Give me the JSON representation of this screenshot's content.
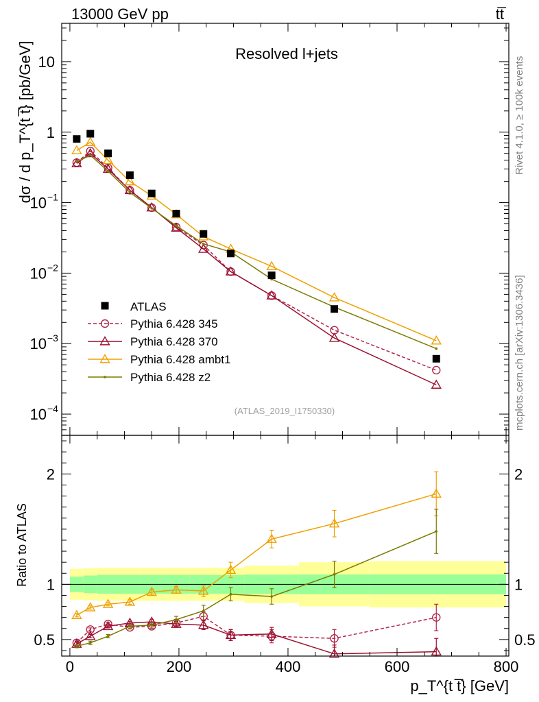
{
  "header": {
    "energy_label": "13000 GeV pp",
    "process_label": "tt̅"
  },
  "side_labels": {
    "rivet": "Rivet 4.1.0, ≥ 100k events",
    "mcplots": "mcplots.cern.ch [arXiv:1306.3436]"
  },
  "chart_data": {
    "type": "scatter",
    "title": "Resolved l+jets",
    "analysis_id": "(ATLAS_2019_I1750330)",
    "xlabel": "p_T^{t t̅} [GeV]",
    "ylabel": "dσ / d p_T^{t t̅} [pb/GeV]",
    "ratio_ylabel": "Ratio to ATLAS",
    "xlim": [
      -15,
      805
    ],
    "ylim": [
      5e-05,
      35
    ],
    "ratio_ylim": [
      0.35,
      2.35
    ],
    "x_ticks": [
      0,
      200,
      400,
      600,
      800
    ],
    "x": [
      12.5,
      37.5,
      70,
      110,
      150,
      195,
      245,
      295,
      370,
      485,
      672
    ],
    "x_bin_edges": [
      0,
      25,
      50,
      90,
      130,
      170,
      220,
      270,
      320,
      420,
      550,
      800
    ],
    "ratio_ticks": [
      0.5,
      1,
      2
    ],
    "main_ticks": [
      {
        "v": 10,
        "m": "10",
        "e": ""
      },
      {
        "v": 1,
        "m": "1",
        "e": ""
      },
      {
        "v": 0.1,
        "m": "10",
        "e": "−1"
      },
      {
        "v": 0.01,
        "m": "10",
        "e": "−2"
      },
      {
        "v": 0.001,
        "m": "10",
        "e": "−3"
      },
      {
        "v": 0.0001,
        "m": "10",
        "e": "−4"
      }
    ],
    "data": {
      "name": "ATLAS",
      "values": [
        0.8,
        0.95,
        0.5,
        0.245,
        0.135,
        0.07,
        0.036,
        0.019,
        0.0093,
        0.0031,
        0.00061
      ]
    },
    "uncertainty_band": {
      "inner_half_width": [
        0.07,
        0.08,
        0.085,
        0.085,
        0.085,
        0.085,
        0.085,
        0.085,
        0.088,
        0.09,
        0.09
      ],
      "outer_half_width": [
        0.14,
        0.145,
        0.15,
        0.15,
        0.15,
        0.15,
        0.15,
        0.15,
        0.17,
        0.2,
        0.21
      ]
    },
    "series": [
      {
        "name": "Pythia 6.428 345",
        "color": "#b0264a",
        "dashed": true,
        "marker": "circle",
        "values": [
          0.37,
          0.54,
          0.31,
          0.15,
          0.085,
          0.045,
          0.025,
          0.0105,
          0.0048,
          0.00155,
          0.00042
        ],
        "ratio": [
          0.47,
          0.59,
          0.64,
          0.61,
          0.62,
          0.65,
          0.71,
          0.54,
          0.53,
          0.51,
          0.7
        ],
        "ratio_err": [
          0.015,
          0.015,
          0.015,
          0.015,
          0.02,
          0.025,
          0.04,
          0.05,
          0.06,
          0.08,
          0.12
        ]
      },
      {
        "name": "Pythia 6.428 370",
        "color": "#9a1030",
        "dashed": false,
        "marker": "triangle",
        "values": [
          0.36,
          0.5,
          0.3,
          0.15,
          0.085,
          0.044,
          0.022,
          0.0105,
          0.0048,
          0.0012,
          0.00026
        ],
        "ratio": [
          0.46,
          0.53,
          0.62,
          0.65,
          0.66,
          0.64,
          0.63,
          0.54,
          0.55,
          0.37,
          0.39
        ],
        "ratio_err": [
          0.015,
          0.015,
          0.015,
          0.015,
          0.02,
          0.025,
          0.04,
          0.05,
          0.06,
          0.08,
          0.12
        ]
      },
      {
        "name": "Pythia 6.428 ambt1",
        "color": "#f0a000",
        "dashed": false,
        "marker": "triangle",
        "values": [
          0.55,
          0.72,
          0.4,
          0.2,
          0.125,
          0.068,
          0.033,
          0.022,
          0.0125,
          0.0045,
          0.0011
        ],
        "ratio": [
          0.72,
          0.79,
          0.82,
          0.84,
          0.93,
          0.95,
          0.94,
          1.13,
          1.41,
          1.55,
          1.82
        ],
        "ratio_err": [
          0.015,
          0.015,
          0.015,
          0.02,
          0.025,
          0.03,
          0.05,
          0.07,
          0.08,
          0.12,
          0.2
        ]
      },
      {
        "name": "Pythia 6.428 z2",
        "color": "#7a7a00",
        "dashed": false,
        "marker": "dot",
        "values": [
          0.38,
          0.47,
          0.28,
          0.14,
          0.083,
          0.047,
          0.026,
          0.02,
          0.0082,
          0.0033,
          0.00085
        ],
        "ratio": [
          0.44,
          0.47,
          0.53,
          0.62,
          0.63,
          0.68,
          0.76,
          0.91,
          0.89,
          1.09,
          1.48
        ],
        "ratio_err": [
          0.015,
          0.015,
          0.015,
          0.02,
          0.025,
          0.03,
          0.05,
          0.06,
          0.07,
          0.12,
          0.2
        ]
      }
    ],
    "band_colors": {
      "inner": "#99ff99",
      "outer": "#ffff99"
    }
  }
}
